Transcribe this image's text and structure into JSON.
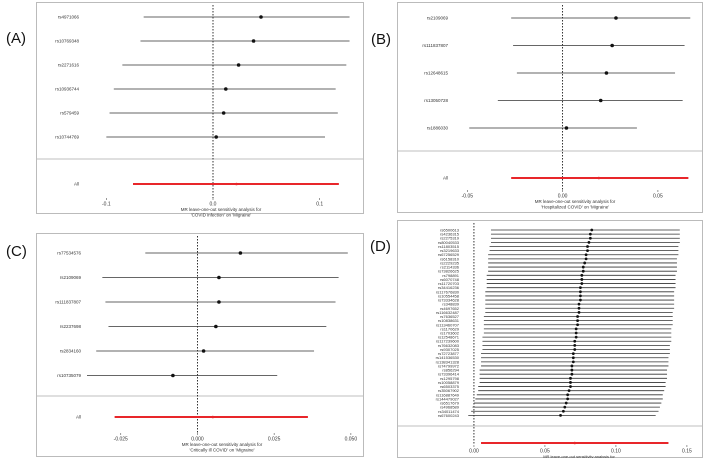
{
  "colors": {
    "ci_line": "#333333",
    "overall": "#e8262a",
    "point": "#111111",
    "zero_line": "#000000",
    "separator": "#aaaaaa"
  },
  "chart_data": [
    {
      "type": "forest",
      "panel_label": "(A)",
      "xlabel": "MR leave-one-out sensitivity analysis for\n'COVID infection' on 'Migraine'",
      "xlim": [
        -0.12,
        0.135
      ],
      "xticks": [
        -0.1,
        0,
        0.1
      ],
      "xtick_labels": [
        "-0.1",
        "0.0",
        "0.1"
      ],
      "snps": [
        {
          "label": "rs4971066",
          "est": 0.045,
          "lo": -0.065,
          "hi": 0.128
        },
        {
          "label": "rs10769348",
          "est": 0.038,
          "lo": -0.068,
          "hi": 0.128
        },
        {
          "label": "rs2271616",
          "est": 0.024,
          "lo": -0.085,
          "hi": 0.125
        },
        {
          "label": "rs10936744",
          "est": 0.012,
          "lo": -0.093,
          "hi": 0.115
        },
        {
          "label": "rs579459",
          "est": 0.01,
          "lo": -0.097,
          "hi": 0.117
        },
        {
          "label": "rs10744769",
          "est": 0.003,
          "lo": -0.1,
          "hi": 0.105
        }
      ],
      "overall": {
        "label": "All",
        "est": 0.022,
        "lo": -0.075,
        "hi": 0.118
      }
    },
    {
      "type": "forest",
      "panel_label": "(B)",
      "xlabel": "MR leave-one-out sensitivity analysis for\n'Hospitalized COVID' on 'Migraine'",
      "xlim": [
        -0.057,
        0.07
      ],
      "xticks": [
        -0.05,
        0,
        0.05
      ],
      "xtick_labels": [
        "-0.05",
        "0.00",
        "0.05"
      ],
      "snps": [
        {
          "label": "rs2109069",
          "est": 0.028,
          "lo": -0.027,
          "hi": 0.067
        },
        {
          "label": "rs111837807",
          "est": 0.026,
          "lo": -0.026,
          "hi": 0.064
        },
        {
          "label": "rs12648615",
          "est": 0.023,
          "lo": -0.024,
          "hi": 0.059
        },
        {
          "label": "rs13050728",
          "est": 0.02,
          "lo": -0.034,
          "hi": 0.063
        },
        {
          "label": "rs1886030",
          "est": 0.002,
          "lo": -0.049,
          "hi": 0.039
        }
      ],
      "overall": {
        "label": "All",
        "est": 0.019,
        "lo": -0.027,
        "hi": 0.066
      }
    },
    {
      "type": "forest",
      "panel_label": "(C)",
      "xlabel": "MR leave-one-out sensitivity analysis for\n'Critically ill COVID' on 'Migraine'",
      "xlim": [
        -0.036,
        0.052
      ],
      "xticks": [
        -0.025,
        0,
        0.025,
        0.05
      ],
      "xtick_labels": [
        "-0.025",
        "0.000",
        "0.025",
        "0.050"
      ],
      "snps": [
        {
          "label": "rs77534576",
          "est": 0.014,
          "lo": -0.017,
          "hi": 0.049
        },
        {
          "label": "rs2109069",
          "est": 0.007,
          "lo": -0.031,
          "hi": 0.046
        },
        {
          "label": "rs111837807",
          "est": 0.007,
          "lo": -0.03,
          "hi": 0.045
        },
        {
          "label": "rs2237698",
          "est": 0.006,
          "lo": -0.029,
          "hi": 0.042
        },
        {
          "label": "rs2834160",
          "est": 0.002,
          "lo": -0.033,
          "hi": 0.038
        },
        {
          "label": "rs10735079",
          "est": -0.008,
          "lo": -0.036,
          "hi": 0.026
        }
      ],
      "overall": {
        "label": "All",
        "est": 0.005,
        "lo": -0.027,
        "hi": 0.036
      }
    },
    {
      "type": "forest",
      "panel_label": "(D)",
      "xlabel": "MR leave-one-out sensitivity analysis for\n'COVID vaccine' on 'Migraine'",
      "xlim": [
        -0.007,
        0.155
      ],
      "xticks": [
        0,
        0.05,
        0.1,
        0.15
      ],
      "xtick_labels": [
        "0.00",
        "0.05",
        "0.10",
        "0.15"
      ],
      "snps": [
        {
          "label": "rs6500613",
          "est": 0.083,
          "lo": 0.012,
          "hi": 0.145
        },
        {
          "label": "rs4236315",
          "est": 0.082,
          "lo": 0.012,
          "hi": 0.145
        },
        {
          "label": "rs2275319",
          "est": 0.082,
          "lo": 0.012,
          "hi": 0.145
        },
        {
          "label": "rs80040533",
          "est": 0.081,
          "lo": 0.012,
          "hi": 0.145
        },
        {
          "label": "rs11803515",
          "est": 0.08,
          "lo": 0.011,
          "hi": 0.144
        },
        {
          "label": "rs3219633",
          "est": 0.08,
          "lo": 0.011,
          "hi": 0.144
        },
        {
          "label": "rs67256529",
          "est": 0.079,
          "lo": 0.01,
          "hi": 0.144
        },
        {
          "label": "rs6158310",
          "est": 0.079,
          "lo": 0.01,
          "hi": 0.143
        },
        {
          "label": "rs2229235",
          "est": 0.078,
          "lo": 0.01,
          "hi": 0.143
        },
        {
          "label": "rs2114336",
          "est": 0.077,
          "lo": 0.01,
          "hi": 0.143
        },
        {
          "label": "rs73826625",
          "est": 0.077,
          "lo": 0.01,
          "hi": 0.143
        },
        {
          "label": "rs798891",
          "est": 0.076,
          "lo": 0.009,
          "hi": 0.142
        },
        {
          "label": "rs6070748",
          "est": 0.076,
          "lo": 0.009,
          "hi": 0.142
        },
        {
          "label": "rs11720703",
          "est": 0.076,
          "lo": 0.009,
          "hi": 0.142
        },
        {
          "label": "rs34416236",
          "est": 0.075,
          "lo": 0.009,
          "hi": 0.142
        },
        {
          "label": "rs117676830",
          "est": 0.075,
          "lo": 0.008,
          "hi": 0.141
        },
        {
          "label": "rs10554458",
          "est": 0.075,
          "lo": 0.008,
          "hi": 0.141
        },
        {
          "label": "rs73334628",
          "est": 0.075,
          "lo": 0.008,
          "hi": 0.141
        },
        {
          "label": "rs348839",
          "est": 0.074,
          "lo": 0.008,
          "hi": 0.141
        },
        {
          "label": "rs4697652",
          "est": 0.074,
          "lo": 0.008,
          "hi": 0.141
        },
        {
          "label": "rs116632487",
          "est": 0.074,
          "lo": 0.008,
          "hi": 0.14
        },
        {
          "label": "rs7636527",
          "est": 0.073,
          "lo": 0.007,
          "hi": 0.14
        },
        {
          "label": "rs10838631",
          "est": 0.073,
          "lo": 0.007,
          "hi": 0.14
        },
        {
          "label": "rs113460707",
          "est": 0.073,
          "lo": 0.007,
          "hi": 0.14
        },
        {
          "label": "rs1170629",
          "est": 0.072,
          "lo": 0.007,
          "hi": 0.139
        },
        {
          "label": "rs1703602",
          "est": 0.072,
          "lo": 0.007,
          "hi": 0.139
        },
        {
          "label": "rs12548671",
          "est": 0.072,
          "lo": 0.006,
          "hi": 0.139
        },
        {
          "label": "rs117239600",
          "est": 0.071,
          "lo": 0.006,
          "hi": 0.139
        },
        {
          "label": "rs76632083",
          "est": 0.071,
          "lo": 0.006,
          "hi": 0.138
        },
        {
          "label": "rs9307025",
          "est": 0.071,
          "lo": 0.006,
          "hi": 0.138
        },
        {
          "label": "rs72723877",
          "est": 0.07,
          "lo": 0.005,
          "hi": 0.138
        },
        {
          "label": "rs141536530",
          "est": 0.07,
          "lo": 0.005,
          "hi": 0.137
        },
        {
          "label": "rs138341328",
          "est": 0.07,
          "lo": 0.005,
          "hi": 0.137
        },
        {
          "label": "rs74799972",
          "est": 0.069,
          "lo": 0.005,
          "hi": 0.137
        },
        {
          "label": "rs856294",
          "est": 0.069,
          "lo": 0.004,
          "hi": 0.136
        },
        {
          "label": "rs73396414",
          "est": 0.069,
          "lo": 0.004,
          "hi": 0.136
        },
        {
          "label": "rs1295798",
          "est": 0.068,
          "lo": 0.004,
          "hi": 0.136
        },
        {
          "label": "rs10058879",
          "est": 0.068,
          "lo": 0.004,
          "hi": 0.135
        },
        {
          "label": "rs6503375",
          "est": 0.068,
          "lo": 0.003,
          "hi": 0.135
        },
        {
          "label": "rs35067902",
          "est": 0.067,
          "lo": 0.003,
          "hi": 0.134
        },
        {
          "label": "rs116887649",
          "est": 0.066,
          "lo": 0.002,
          "hi": 0.133
        },
        {
          "label": "rs144479027",
          "est": 0.066,
          "lo": 0.001,
          "hi": 0.133
        },
        {
          "label": "rs6517679",
          "est": 0.065,
          "lo": 0.0,
          "hi": 0.132
        },
        {
          "label": "rs4968589",
          "est": 0.064,
          "lo": -0.001,
          "hi": 0.131
        },
        {
          "label": "rs34011474",
          "est": 0.063,
          "lo": -0.002,
          "hi": 0.13
        },
        {
          "label": "rs67600243",
          "est": 0.061,
          "lo": -0.004,
          "hi": 0.128
        }
      ],
      "overall": {
        "label": "",
        "est": 0.071,
        "lo": 0.005,
        "hi": 0.137
      }
    }
  ]
}
